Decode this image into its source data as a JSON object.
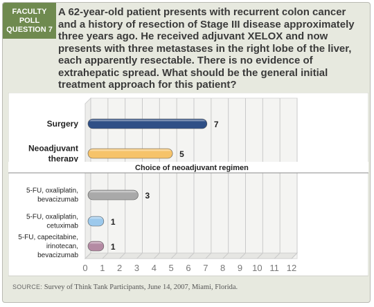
{
  "badge": {
    "line1": "FACULTY",
    "line2": "POLL",
    "line3": "QUESTION 7"
  },
  "question": "A 62-year-old patient presents with recurrent colon cancer and a history of resection of Stage III disease approximately three years ago. He received adjuvant XELOX and now presents with three metastases in the right lobe of the liver, each apparently resectable. There is no evidence of extrahepatic spread. What should be the general initial treatment approach for this patient?",
  "source": {
    "label": "SOURCE:",
    "text": "Survey of Think Tank Participants, June 14, 2007, Miami, Florida."
  },
  "colors": {
    "badge": "#6f8a4f",
    "surgery": "#2f4f86",
    "neoadjuvant": "#f6c36a",
    "oxali_bev": "#a9a9a9",
    "oxali_cetux": "#9cc9ec",
    "cape_iri_bev": "#b48aa3"
  },
  "chart_data": {
    "type": "bar",
    "orientation": "horizontal",
    "title": "",
    "xlabel": "",
    "ylabel": "",
    "xlim": [
      0,
      12
    ],
    "xticks": [
      0,
      1,
      2,
      3,
      4,
      5,
      6,
      7,
      8,
      9,
      10,
      11,
      12
    ],
    "grid": true,
    "annotation": "Choice of neoadjuvant regimen",
    "categories": [
      {
        "label": [
          "Surgery"
        ],
        "value": 7,
        "color": "#2f4f86",
        "bold": true
      },
      {
        "label": [
          "Neoadjuvant",
          "therapy"
        ],
        "value": 5,
        "color": "#f6c36a",
        "bold": true
      },
      {
        "label": [
          "5-FU, oxaliplatin,",
          "bevacizumab"
        ],
        "value": 3,
        "color": "#a9a9a9",
        "bold": false
      },
      {
        "label": [
          "5-FU, oxaliplatin,",
          "cetuximab"
        ],
        "value": 1,
        "color": "#9cc9ec",
        "bold": false
      },
      {
        "label": [
          "5-FU, capecitabine,",
          "irinotecan,",
          "bevacizumab"
        ],
        "value": 1,
        "color": "#b48aa3",
        "bold": false
      }
    ]
  }
}
